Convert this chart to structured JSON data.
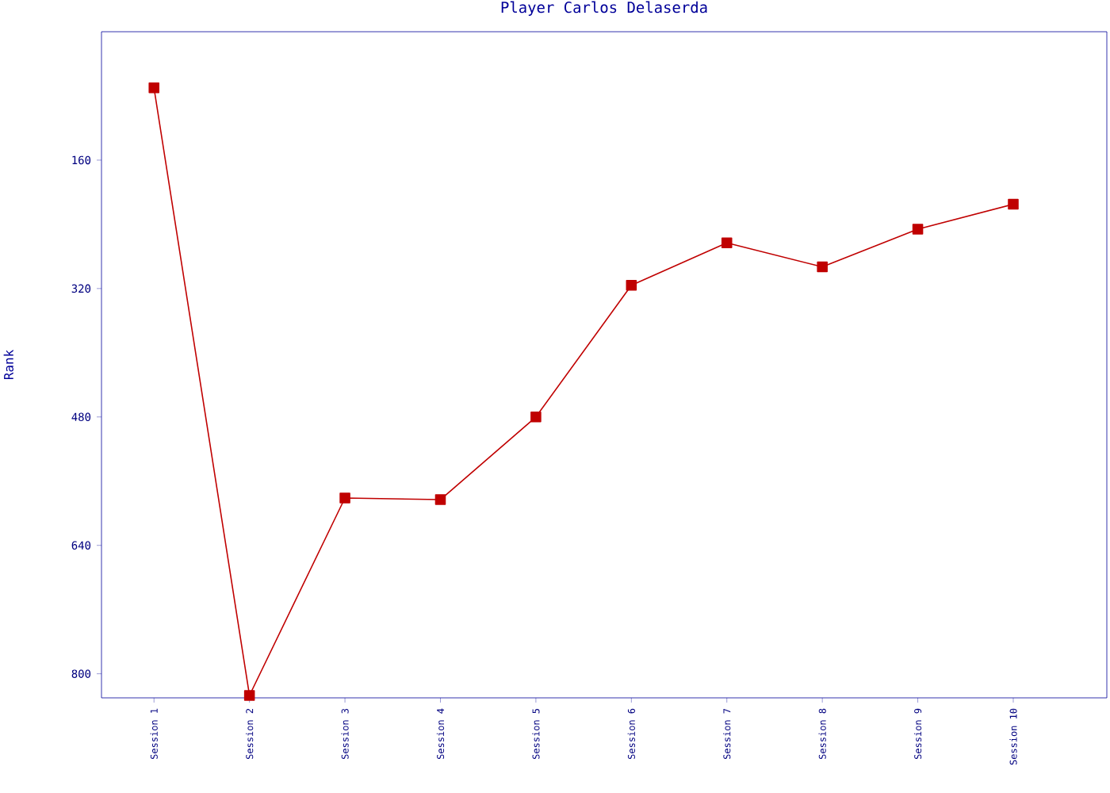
{
  "chart_data": {
    "type": "line",
    "title": "Player Carlos Delaserda",
    "ylabel": "Rank",
    "categories": [
      "Session 1",
      "Session 2",
      "Session 3",
      "Session 4",
      "Session 5",
      "Session 6",
      "Session 7",
      "Session 8",
      "Session 9",
      "Session 10"
    ],
    "series": [
      {
        "color": "#c00000",
        "values": [
          70,
          827,
          581,
          583,
          480,
          316,
          263,
          293,
          246,
          215
        ]
      }
    ],
    "ylim": [
      830,
      0
    ],
    "yticks": [
      160,
      320,
      480,
      640,
      800
    ],
    "marker": "square",
    "line_style": "solid"
  }
}
